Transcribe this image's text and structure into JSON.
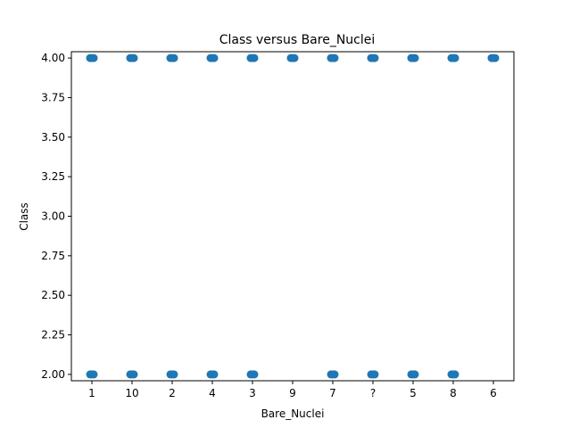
{
  "chart_data": {
    "type": "scatter",
    "title": "Class versus Bare_Nuclei",
    "xlabel": "Bare_Nuclei",
    "ylabel": "Class",
    "categories": [
      "1",
      "10",
      "2",
      "4",
      "3",
      "9",
      "7",
      "?",
      "5",
      "8",
      "6"
    ],
    "yticks": [
      "2.00",
      "2.25",
      "2.50",
      "2.75",
      "3.00",
      "3.25",
      "3.50",
      "3.75",
      "4.00"
    ],
    "ylim": [
      1.96,
      4.04
    ],
    "grid": false,
    "marker_color": "#1f77b4",
    "series": [
      {
        "points": [
          {
            "x": "1",
            "y": 4
          },
          {
            "x": "10",
            "y": 4
          },
          {
            "x": "2",
            "y": 4
          },
          {
            "x": "4",
            "y": 4
          },
          {
            "x": "3",
            "y": 4
          },
          {
            "x": "9",
            "y": 4
          },
          {
            "x": "7",
            "y": 4
          },
          {
            "x": "?",
            "y": 4
          },
          {
            "x": "5",
            "y": 4
          },
          {
            "x": "8",
            "y": 4
          },
          {
            "x": "6",
            "y": 4
          },
          {
            "x": "1",
            "y": 2
          },
          {
            "x": "10",
            "y": 2
          },
          {
            "x": "2",
            "y": 2
          },
          {
            "x": "4",
            "y": 2
          },
          {
            "x": "3",
            "y": 2
          },
          {
            "x": "7",
            "y": 2
          },
          {
            "x": "?",
            "y": 2
          },
          {
            "x": "5",
            "y": 2
          },
          {
            "x": "8",
            "y": 2
          }
        ]
      }
    ]
  }
}
